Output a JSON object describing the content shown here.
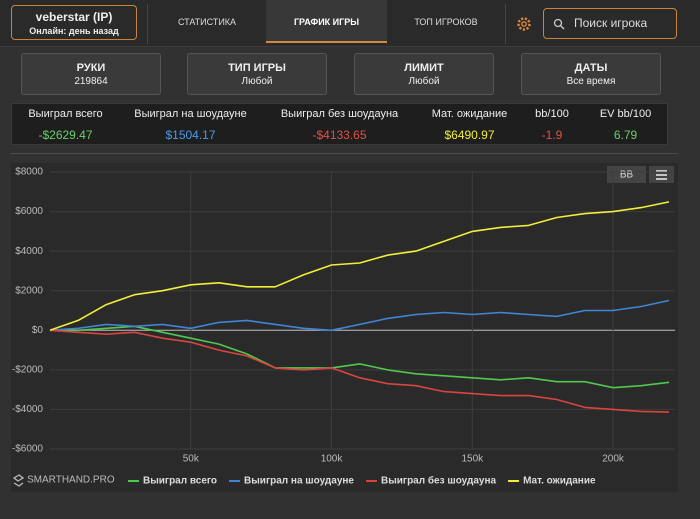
{
  "header": {
    "user": {
      "name": "veberstar (IP)",
      "status": "Онлайн: день назад"
    },
    "tabs": [
      "СТАТИСТИКА",
      "ГРАФИК ИГРЫ",
      "ТОП ИГРОКОВ"
    ],
    "active_tab": 1,
    "search_placeholder": "Поиск игрока"
  },
  "filters": [
    {
      "label": "РУКИ",
      "value": "219864"
    },
    {
      "label": "ТИП ИГРЫ",
      "value": "Любой"
    },
    {
      "label": "ЛИМИТ",
      "value": "Любой"
    },
    {
      "label": "ДАТЫ",
      "value": "Все время"
    }
  ],
  "stats": {
    "headers": [
      "Выиграл всего",
      "Выиграл на шоудауне",
      "Выиграл без шоудауна",
      "Мат. ожидание",
      "bb/100",
      "EV bb/100"
    ],
    "values": [
      "-$2629.47",
      "$1504.17",
      "-$4133.65",
      "$6490.97",
      "-1.9",
      "6.79"
    ]
  },
  "chart_data": {
    "type": "line",
    "button": "BB",
    "brand": "SMARTHAND.PRO",
    "grid": true,
    "x": [
      0,
      10000,
      20000,
      30000,
      40000,
      50000,
      60000,
      70000,
      80000,
      90000,
      100000,
      110000,
      120000,
      130000,
      140000,
      150000,
      160000,
      170000,
      180000,
      190000,
      200000,
      210000,
      219864
    ],
    "xlim": [
      0,
      222000
    ],
    "xticks": [
      {
        "value": 50000,
        "label": "50k"
      },
      {
        "value": 100000,
        "label": "100k"
      },
      {
        "value": 150000,
        "label": "150k"
      },
      {
        "value": 200000,
        "label": "200k"
      }
    ],
    "ylim": [
      -6000,
      8000
    ],
    "yticks": [
      {
        "value": 8000,
        "label": "$8000"
      },
      {
        "value": 6000,
        "label": "$6000"
      },
      {
        "value": 4000,
        "label": "$4000"
      },
      {
        "value": 2000,
        "label": "$2000"
      },
      {
        "value": 0,
        "label": "$0"
      },
      {
        "value": -2000,
        "label": "-$2000"
      },
      {
        "value": -4000,
        "label": "-$4000"
      },
      {
        "value": -6000,
        "label": "-$6000"
      }
    ],
    "series": [
      {
        "name": "Выиграл всего",
        "color": "#4fc94f",
        "values": [
          0,
          0,
          100,
          200,
          -100,
          -400,
          -700,
          -1200,
          -1900,
          -1900,
          -1900,
          -1700,
          -2000,
          -2200,
          -2300,
          -2400,
          -2500,
          -2400,
          -2600,
          -2600,
          -2900,
          -2800,
          -2629.47
        ]
      },
      {
        "name": "Выиграл на шоудауне",
        "color": "#3f86d6",
        "values": [
          0,
          100,
          300,
          200,
          300,
          100,
          400,
          500,
          300,
          100,
          0,
          300,
          600,
          800,
          900,
          800,
          900,
          800,
          700,
          1000,
          1000,
          1200,
          1504.17
        ]
      },
      {
        "name": "Выиграл без шоудауна",
        "color": "#d9443f",
        "values": [
          0,
          -100,
          -200,
          -100,
          -400,
          -600,
          -1000,
          -1300,
          -1900,
          -2000,
          -1900,
          -2400,
          -2700,
          -2800,
          -3100,
          -3200,
          -3300,
          -3300,
          -3500,
          -3900,
          -4000,
          -4100,
          -4133.65
        ]
      },
      {
        "name": "Мат. ожидание",
        "color": "#f2ee3a",
        "values": [
          0,
          500,
          1300,
          1800,
          2000,
          2300,
          2400,
          2200,
          2200,
          2800,
          3300,
          3400,
          3800,
          4000,
          4500,
          5000,
          5200,
          5300,
          5700,
          5900,
          6000,
          6200,
          6490.97
        ]
      }
    ]
  }
}
